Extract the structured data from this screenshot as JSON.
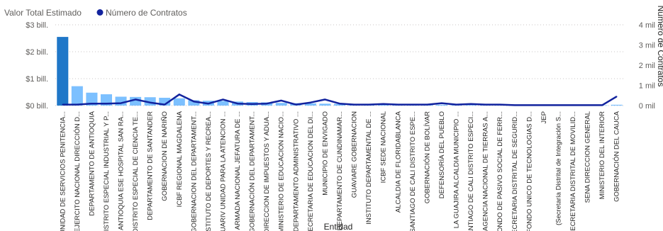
{
  "chart_data": {
    "type": "bar",
    "legend": {
      "position": "top-left",
      "entries": [
        {
          "label": "Valor Total Estimado",
          "kind": "bar",
          "color": "#118DFF"
        },
        {
          "label": "Número de Contratos",
          "kind": "line",
          "color": "#12239E"
        }
      ]
    },
    "xlabel": "Entidad",
    "ylabel_right": "Número de Contratos",
    "y_left": {
      "ticks": [
        "$3 bill.",
        "$2 bill.",
        "$1 bill.",
        "$0 bill."
      ],
      "values": [
        3,
        2,
        1,
        0
      ],
      "unit": "bill.",
      "range": [
        0,
        3
      ]
    },
    "y_right": {
      "ticks": [
        "4 mil",
        "3 mil",
        "2 mil",
        "1 mil",
        "0 mil"
      ],
      "values": [
        4,
        3,
        2,
        1,
        0
      ],
      "unit": "mil",
      "range": [
        0,
        4
      ]
    },
    "grid": true,
    "categories": [
      "UNIDAD DE SERVICIOS PENITENCIA...",
      "EJERCITO NACIONAL DIRECCIÓN D...",
      "DEPARTAMENTO DE ANTIOQUIA",
      "DISTRITO ESPECIAL INDUSTRIAL Y P...",
      "ANTIOQUIA ESE HOSPITAL SAN RA...",
      "DISTRITO ESPECIAL DE CIENCIA TE...",
      "DEPARTAMENTO DE SANTANDER",
      "GOBERNACION DE NARIÑO",
      "ICBF REGIONAL MAGDALENA",
      "GOBERNACION DEL DEPARTAMENT...",
      "INSTITUTO DE DEPORTES Y RECREA...",
      "UARIV UNIDAD PARA LA ATENCION ...",
      "ARMADA NACIONAL JEFATURA DE ...",
      "GOBERNACIÓN DEL DEPARTAMENT...",
      "DIRECCION DE IMPUESTOS Y ADUA...",
      "MINISTERIO DE EDUCACION NACIO...",
      "DEPARTAMENTO ADMINISTRATIVO ...",
      "SECRETARIA DE EDUCACION DEL DI...",
      "MUNICIPIO DE ENVIGADO",
      "DEPARTAMENTO DE CUNDINAMAR...",
      "GUAVIARE GOBERNACION",
      "INSTITUTO DEPARTAMENTAL DE ...",
      "ICBF SEDE NACIONAL",
      "ALCALDIA DE FLORIDABLANCA",
      "SANTIAGO DE CALI DISTRITO ESPE...",
      "GOBERNACIÓN DE BOLÍVAR",
      "DEFENSORÍA DEL PUEBLO",
      "LA GUAJIRA ALCALDIA MUNICIPIO ...",
      "SANTIAGO DE CALI DISTRITO ESPECI...",
      "AGENCIA NACIONAL DE TIERRAS A...",
      "FONDO DE PASIVO SOCIAL DE FERR...",
      "SECRETARIA DISTRITAL DE SEGURID...",
      "FONDO UNICO DE TECNOLOGIAS D...",
      "JEP",
      "(Secretaría Distrital de Integración S...",
      "(SECRETARIA DISTRITAL DE MOVILID...",
      "SENA DIRECCION GENERAL",
      "MINISTERIO DEL INTERIOR",
      "GOBERNACIÓN DEL CAUCA"
    ],
    "series": [
      {
        "name": "Valor Total Estimado",
        "kind": "bar",
        "unit": "bill.",
        "values": [
          2.55,
          0.72,
          0.48,
          0.42,
          0.33,
          0.32,
          0.31,
          0.29,
          0.27,
          0.2,
          0.18,
          0.17,
          0.15,
          0.13,
          0.12,
          0.1,
          0.09,
          0.08,
          0.07,
          0.06,
          0.05,
          0.04,
          0.04,
          0.03,
          0.03,
          0.03,
          0.03,
          0.02,
          0.02,
          0.02,
          0.02,
          0.02,
          0.02,
          0.01,
          0.01,
          0.01,
          0.01,
          0.01,
          0.03
        ]
      },
      {
        "name": "Número de Contratos",
        "kind": "line",
        "unit": "mil",
        "values": [
          0.05,
          0.05,
          0.1,
          0.1,
          0.12,
          0.3,
          0.15,
          0.05,
          0.55,
          0.2,
          0.1,
          0.3,
          0.1,
          0.08,
          0.1,
          0.25,
          0.05,
          0.15,
          0.3,
          0.1,
          0.05,
          0.05,
          0.08,
          0.05,
          0.05,
          0.05,
          0.12,
          0.05,
          0.08,
          0.05,
          0.05,
          0.02,
          0.02,
          0.02,
          0.02,
          0.02,
          0.02,
          0.02,
          0.45
        ]
      }
    ]
  }
}
